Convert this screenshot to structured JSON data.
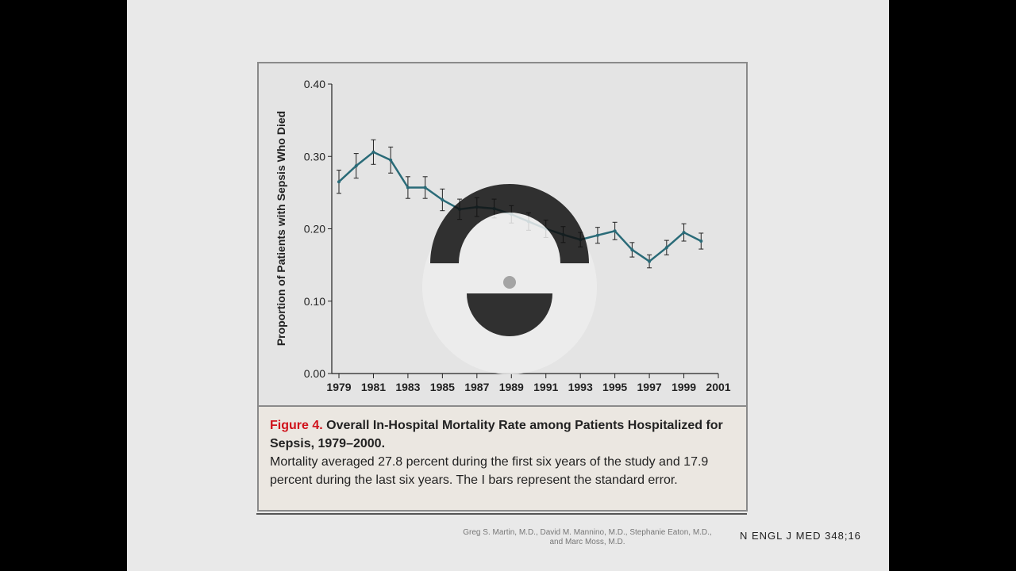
{
  "chart_data": {
    "type": "line",
    "ylabel": "Proportion of Patients with Sepsis Who Died",
    "xlabel": "",
    "ylim": [
      0,
      0.4
    ],
    "xlim": [
      1979,
      2001
    ],
    "yticks": [
      "0.00",
      "0.10",
      "0.20",
      "0.30",
      "0.40"
    ],
    "xticks": [
      "1979",
      "1981",
      "1983",
      "1985",
      "1987",
      "1989",
      "1991",
      "1993",
      "1995",
      "1997",
      "1999",
      "2001"
    ],
    "x": [
      1979,
      1980,
      1981,
      1982,
      1983,
      1984,
      1985,
      1986,
      1987,
      1988,
      1989,
      1990,
      1991,
      1992,
      1993,
      1994,
      1995,
      1996,
      1997,
      1998,
      1999,
      2000
    ],
    "values": [
      0.265,
      0.287,
      0.306,
      0.295,
      0.257,
      0.257,
      0.24,
      0.227,
      0.23,
      0.228,
      0.22,
      0.21,
      0.2,
      0.192,
      0.185,
      0.191,
      0.197,
      0.171,
      0.155,
      0.174,
      0.195,
      0.183
    ],
    "se": [
      0.016,
      0.017,
      0.017,
      0.018,
      0.015,
      0.015,
      0.015,
      0.014,
      0.013,
      0.013,
      0.012,
      0.012,
      0.012,
      0.011,
      0.01,
      0.011,
      0.012,
      0.01,
      0.009,
      0.01,
      0.012,
      0.011
    ],
    "line_color": "#2a6b78"
  },
  "caption": {
    "figure_label": "Figure 4.",
    "title": "Overall In-Hospital Mortality Rate among Patients Hospitalized for Sepsis, 1979–2000.",
    "body": "Mortality averaged 27.8 percent during the first six years of the study and 17.9 percent during the last six years. The I bars represent the standard error."
  },
  "footer": {
    "authors_line1": "Greg S. Martin, M.D., David M. Mannino, M.D., Stephanie Eaton, M.D.,",
    "authors_line2": "and Marc Moss, M.D.",
    "journal": "N ENGL J MED 348;16"
  }
}
